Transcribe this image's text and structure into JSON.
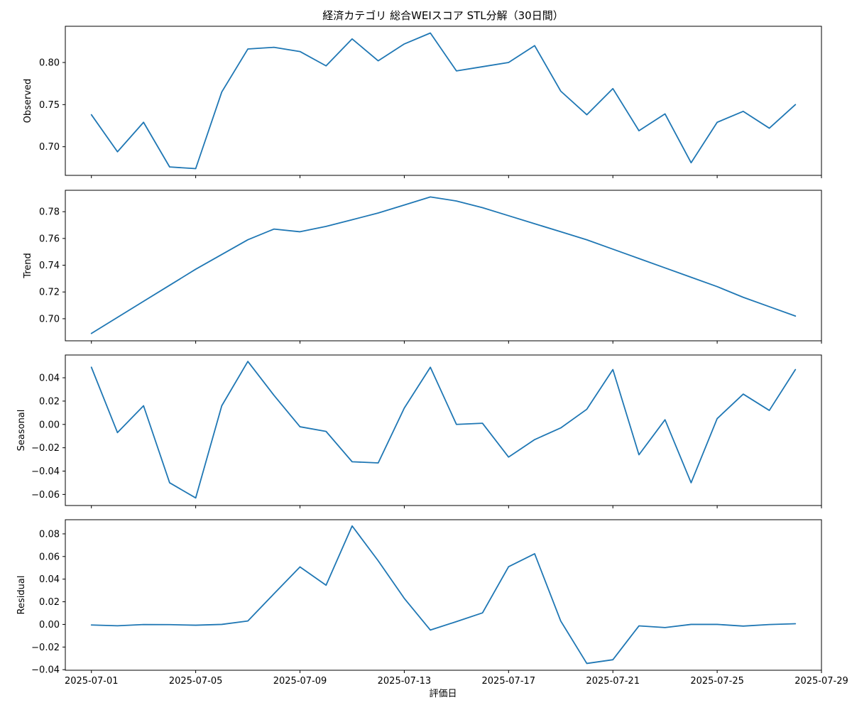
{
  "chart_data": {
    "type": "line",
    "title": "経済カテゴリ 総合WEIスコア STL分解（30日間）",
    "xlabel": "評価日",
    "x_ticks": [
      "2025-07-01",
      "2025-07-05",
      "2025-07-09",
      "2025-07-13",
      "2025-07-17",
      "2025-07-21",
      "2025-07-25",
      "2025-07-29"
    ],
    "x_dates": [
      "2025-07-01",
      "2025-07-02",
      "2025-07-03",
      "2025-07-04",
      "2025-07-05",
      "2025-07-06",
      "2025-07-07",
      "2025-07-08",
      "2025-07-09",
      "2025-07-10",
      "2025-07-11",
      "2025-07-12",
      "2025-07-13",
      "2025-07-14",
      "2025-07-15",
      "2025-07-16",
      "2025-07-17",
      "2025-07-18",
      "2025-07-19",
      "2025-07-20",
      "2025-07-21",
      "2025-07-22",
      "2025-07-23",
      "2025-07-24",
      "2025-07-25",
      "2025-07-26",
      "2025-07-27",
      "2025-07-28"
    ],
    "xlim": [
      "2025-06-30",
      "2025-07-29"
    ],
    "grid": false,
    "panels": [
      {
        "ylabel": "Observed",
        "ylim": [
          0.666,
          0.843
        ],
        "yticks": [
          "0.70",
          "0.75",
          "0.80"
        ],
        "ytick_values": [
          0.7,
          0.75,
          0.8
        ],
        "values": [
          0.738,
          0.694,
          0.729,
          0.676,
          0.674,
          0.765,
          0.816,
          0.818,
          0.813,
          0.796,
          0.828,
          0.802,
          0.822,
          0.835,
          0.79,
          0.795,
          0.8,
          0.82,
          0.766,
          0.738,
          0.769,
          0.719,
          0.739,
          0.681,
          0.729,
          0.742,
          0.722,
          0.75
        ]
      },
      {
        "ylabel": "Trend",
        "ylim": [
          0.6835,
          0.796
        ],
        "yticks": [
          "0.70",
          "0.72",
          "0.74",
          "0.76",
          "0.78"
        ],
        "ytick_values": [
          0.7,
          0.72,
          0.74,
          0.76,
          0.78
        ],
        "values": [
          0.689,
          0.701,
          0.713,
          0.725,
          0.737,
          0.748,
          0.759,
          0.767,
          0.765,
          0.769,
          0.774,
          0.779,
          0.785,
          0.791,
          0.788,
          0.783,
          0.777,
          0.771,
          0.765,
          0.759,
          0.752,
          0.745,
          0.738,
          0.731,
          0.724,
          0.716,
          0.709,
          0.702
        ]
      },
      {
        "ylabel": "Seasonal",
        "ylim": [
          -0.0695,
          0.0595
        ],
        "yticks": [
          "−0.06",
          "−0.04",
          "−0.02",
          "0.00",
          "0.02",
          "0.04"
        ],
        "ytick_values": [
          -0.06,
          -0.04,
          -0.02,
          0.0,
          0.02,
          0.04
        ],
        "values": [
          0.049,
          -0.007,
          0.016,
          -0.05,
          -0.063,
          0.016,
          0.054,
          0.025,
          -0.002,
          -0.006,
          -0.032,
          -0.033,
          0.014,
          0.049,
          0.0,
          0.001,
          -0.028,
          -0.013,
          -0.003,
          0.013,
          0.047,
          -0.026,
          0.004,
          -0.05,
          0.005,
          0.026,
          0.012,
          0.047
        ]
      },
      {
        "ylabel": "Residual",
        "ylim": [
          -0.0405,
          0.0925
        ],
        "yticks": [
          "−0.04",
          "−0.02",
          "0.00",
          "0.02",
          "0.04",
          "0.06",
          "0.08"
        ],
        "ytick_values": [
          -0.04,
          -0.02,
          0.0,
          0.02,
          0.04,
          0.06,
          0.08
        ],
        "values": [
          -0.0005,
          -0.0012,
          -0.0001,
          -0.0002,
          -0.0007,
          0.0,
          0.003,
          0.027,
          0.0508,
          0.0346,
          0.087,
          0.0562,
          0.023,
          -0.005,
          0.0025,
          0.0102,
          0.051,
          0.0624,
          0.003,
          -0.0345,
          -0.0312,
          -0.0013,
          -0.0028,
          0.0,
          0.0,
          -0.0015,
          -0.0001,
          0.0006
        ]
      }
    ]
  }
}
